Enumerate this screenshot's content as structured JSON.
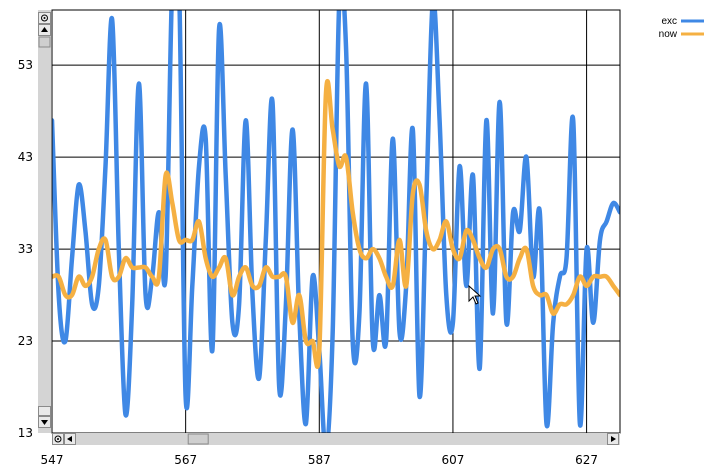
{
  "chart_data": {
    "type": "line",
    "xlim": [
      547,
      632
    ],
    "ylim": [
      13,
      59
    ],
    "x_ticks": [
      547,
      567,
      587,
      607,
      627
    ],
    "y_ticks": [
      13,
      23,
      33,
      43,
      53
    ],
    "grid": true,
    "legend_position": "top-right",
    "x": [
      547,
      548,
      549,
      550,
      551,
      552,
      553,
      554,
      555,
      556,
      557,
      558,
      559,
      560,
      561,
      562,
      563,
      564,
      565,
      566,
      567,
      568,
      569,
      570,
      571,
      572,
      573,
      574,
      575,
      576,
      577,
      578,
      579,
      580,
      581,
      582,
      583,
      584,
      585,
      586,
      587,
      588,
      589,
      590,
      591,
      592,
      593,
      594,
      595,
      596,
      597,
      598,
      599,
      600,
      601,
      602,
      603,
      604,
      605,
      606,
      607,
      608,
      609,
      610,
      611,
      612,
      613,
      614,
      615,
      616,
      617,
      618,
      619,
      620,
      621,
      622,
      623,
      624,
      625,
      626,
      627,
      628,
      629,
      630,
      631,
      632
    ],
    "series": [
      {
        "name": "exc",
        "color": "#3f88e5",
        "values": [
          47,
          28,
          23,
          32,
          40,
          35,
          27,
          29,
          42,
          58,
          33,
          15,
          27,
          51,
          28,
          30,
          37,
          30,
          62,
          62,
          17,
          29,
          42,
          45,
          22,
          57,
          41,
          25,
          27,
          47,
          28,
          19,
          34,
          49,
          18,
          27,
          46,
          26,
          14,
          30,
          22,
          11,
          24,
          60,
          55,
          23,
          26,
          51,
          23,
          28,
          23,
          45,
          24,
          29,
          46,
          17,
          38,
          60,
          47,
          28,
          25,
          42,
          29,
          41,
          20,
          47,
          26,
          49,
          25,
          37,
          35,
          43,
          30,
          37,
          14,
          25,
          30,
          32,
          47,
          14,
          33,
          25,
          34,
          36,
          38,
          37
        ],
        "value_caption": ""
      },
      {
        "name": "now",
        "color": "#f5b042",
        "values": [
          30,
          30,
          28,
          28,
          30,
          29,
          30,
          33,
          34,
          30,
          30,
          32,
          31,
          31,
          31,
          30,
          30,
          41,
          38,
          34,
          34,
          34,
          36,
          32,
          30,
          31,
          32,
          28,
          30,
          31,
          29,
          29,
          31,
          30,
          30,
          30,
          25,
          28,
          23,
          23,
          22,
          50,
          46,
          42,
          43,
          37,
          33,
          32,
          33,
          32,
          30,
          29,
          34,
          29,
          39,
          40,
          35,
          33,
          34,
          36,
          33,
          32,
          35,
          34,
          32,
          31,
          33,
          33,
          30,
          30,
          32,
          33,
          29,
          28,
          28,
          26,
          27,
          27,
          28,
          30,
          29,
          30,
          30,
          30,
          29,
          28
        ]
      }
    ]
  },
  "icons": {
    "scroll_up": "arrow-up-icon",
    "scroll_down": "arrow-down-icon",
    "scroll_left": "arrow-left-icon",
    "scroll_right": "arrow-right-icon",
    "zoom_reset": "zoom-reset-icon",
    "cursor": "mouse-pointer-icon"
  },
  "scrollbars": {
    "vertical_position": 0.0,
    "horizontal_position": 0.22
  }
}
